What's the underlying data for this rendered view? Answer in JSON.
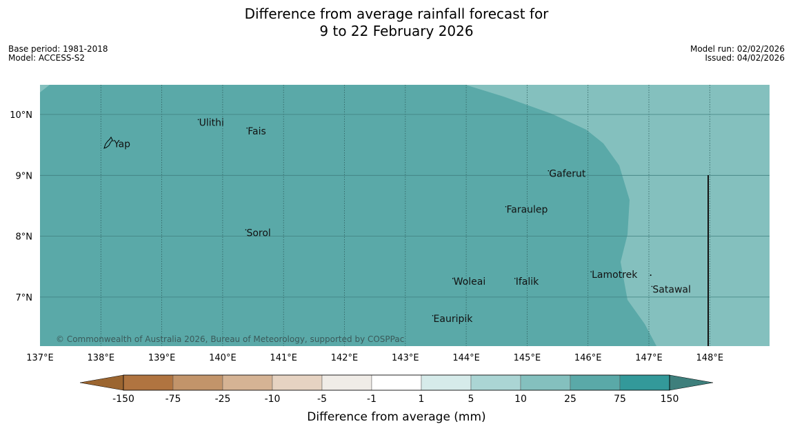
{
  "title": {
    "line1": "Difference from average rainfall forecast for",
    "line2": "9 to 22 February 2026"
  },
  "meta": {
    "base_period": "Base period: 1981-2018",
    "model": "Model: ACCESS-S2",
    "model_run": "Model run: 02/02/2026",
    "issued": "Issued: 04/02/2026"
  },
  "copyright": "© Commonwealth of Australia 2026, Bureau of Meteorology, supported by COSPPac",
  "colors": {
    "c_75_150": "#5aa9a8",
    "c_25_75": "#84c0be",
    "border": "#111111"
  },
  "axes": {
    "lon_ticks": [
      "137°E",
      "138°E",
      "139°E",
      "140°E",
      "141°E",
      "142°E",
      "143°E",
      "144°E",
      "145°E",
      "146°E",
      "147°E",
      "148°E"
    ],
    "lat_ticks": [
      "10°N",
      "9°N",
      "8°N",
      "7°N"
    ],
    "lon_values": [
      137,
      138,
      139,
      140,
      141,
      142,
      143,
      144,
      145,
      146,
      147,
      148
    ],
    "lat_values": [
      10,
      9,
      8,
      7
    ]
  },
  "places": [
    {
      "name": "Yap",
      "lon": 138.2,
      "lat": 9.52
    },
    {
      "name": "Ulithi",
      "lon": 139.6,
      "lat": 9.87
    },
    {
      "name": "Fais",
      "lon": 140.4,
      "lat": 9.73
    },
    {
      "name": "Gaferut",
      "lon": 145.35,
      "lat": 9.03
    },
    {
      "name": "Faraulep",
      "lon": 144.65,
      "lat": 8.44
    },
    {
      "name": "Sorol",
      "lon": 140.38,
      "lat": 8.06
    },
    {
      "name": "Lamotrek",
      "lon": 146.05,
      "lat": 7.37
    },
    {
      "name": "Woleai",
      "lon": 143.78,
      "lat": 7.26
    },
    {
      "name": "Ifalik",
      "lon": 144.8,
      "lat": 7.26
    },
    {
      "name": "Satawal",
      "lon": 147.05,
      "lat": 7.13
    },
    {
      "name": "Eauripik",
      "lon": 143.45,
      "lat": 6.65
    }
  ],
  "legend": {
    "title": "Difference from average (mm)",
    "labels": [
      "-150",
      "-75",
      "-25",
      "-10",
      "-5",
      "-1",
      "1",
      "5",
      "10",
      "25",
      "75",
      "150"
    ],
    "colors": [
      "#b07440",
      "#c2946a",
      "#d5b394",
      "#e6d3c2",
      "#f0ece7",
      "#ffffff",
      "#d6ebea",
      "#abd5d4",
      "#84c0be",
      "#5aa9a8",
      "#33999a",
      "#3e7f7c"
    ],
    "low_extend_color": "#9b6530",
    "high_extend_color": "#3e7f7c"
  }
}
